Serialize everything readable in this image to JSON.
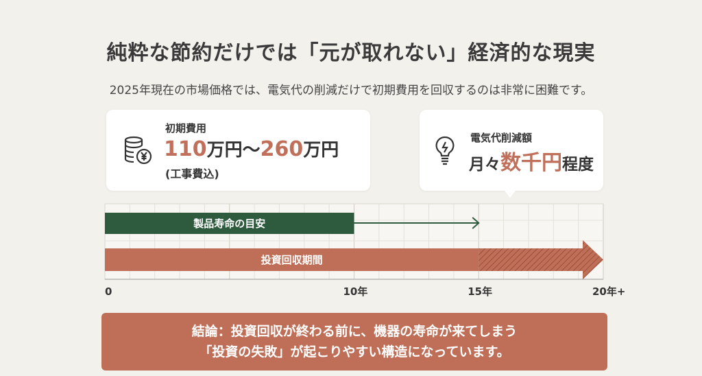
{
  "title": "純粋な節約だけでは「元が取れない」経済的な現実",
  "subtitle": "2025年現在の市場価格では、電気代の削減だけで初期費用を回収するのは非常に困難です。",
  "cost_card": {
    "icon": "coins-yen-icon",
    "label": "初期費用",
    "value_low": "110",
    "unit1": "万円〜",
    "value_high": "260",
    "unit2": "万円",
    "note": "(工事費込)"
  },
  "saving_card": {
    "icon": "lightbulb-bolt-icon",
    "label": "電気代削減額",
    "prefix": "月々",
    "value": "数千円",
    "suffix": "程度"
  },
  "chart_data": {
    "type": "timeline",
    "xlim": [
      0,
      20
    ],
    "ticks": [
      {
        "value": 0,
        "label": "0"
      },
      {
        "value": 10,
        "label": "10年"
      },
      {
        "value": 15,
        "label": "15年"
      },
      {
        "value": 20,
        "label": "20年+"
      }
    ],
    "grid": true,
    "bars": [
      {
        "label": "製品寿命の目安",
        "start": 0,
        "end": 10,
        "arrow_to": 15,
        "color": "#2e5a3e"
      },
      {
        "label": "投資回収期間",
        "start": 0,
        "end": 15,
        "hatched_to": 20,
        "color": "#bf6f57"
      }
    ]
  },
  "conclusion": {
    "line1": "結論：投資回収が終わる前に、機器の寿命が来てしまう",
    "line2": "「投資の失敗」が起こりやすい構造になっています。"
  }
}
